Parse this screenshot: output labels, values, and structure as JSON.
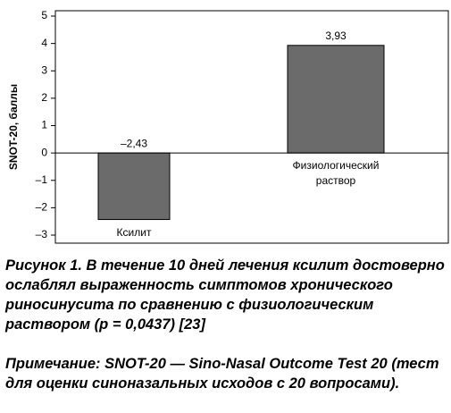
{
  "chart_data": {
    "type": "bar",
    "ylabel": "SNOT-20, баллы",
    "categories": [
      "Ксилит",
      "Физиологический раствор"
    ],
    "values": [
      -2.43,
      3.93
    ],
    "value_labels": [
      "–2,43",
      "3,93"
    ],
    "color": "#6b6b6b",
    "ylim": [
      -3,
      5
    ],
    "yticks": [
      {
        "value": -3,
        "label": "–3"
      },
      {
        "value": -2,
        "label": "–2"
      },
      {
        "value": -1,
        "label": "–1"
      },
      0,
      1,
      2,
      3,
      4,
      5
    ]
  },
  "caption": {
    "figure": "Рисунок 1. В течение 10 дней лечения ксилит достоверно ослаблял выраженность симптомов хронического риносинусита по сравнению с физиологическим раствором (р = 0,0437) [23]",
    "note": "Примечание: SNOT-20 — Sino-Nasal Outcome Test 20 (тест для оценки синоназальных исходов с 20 вопросами)."
  }
}
